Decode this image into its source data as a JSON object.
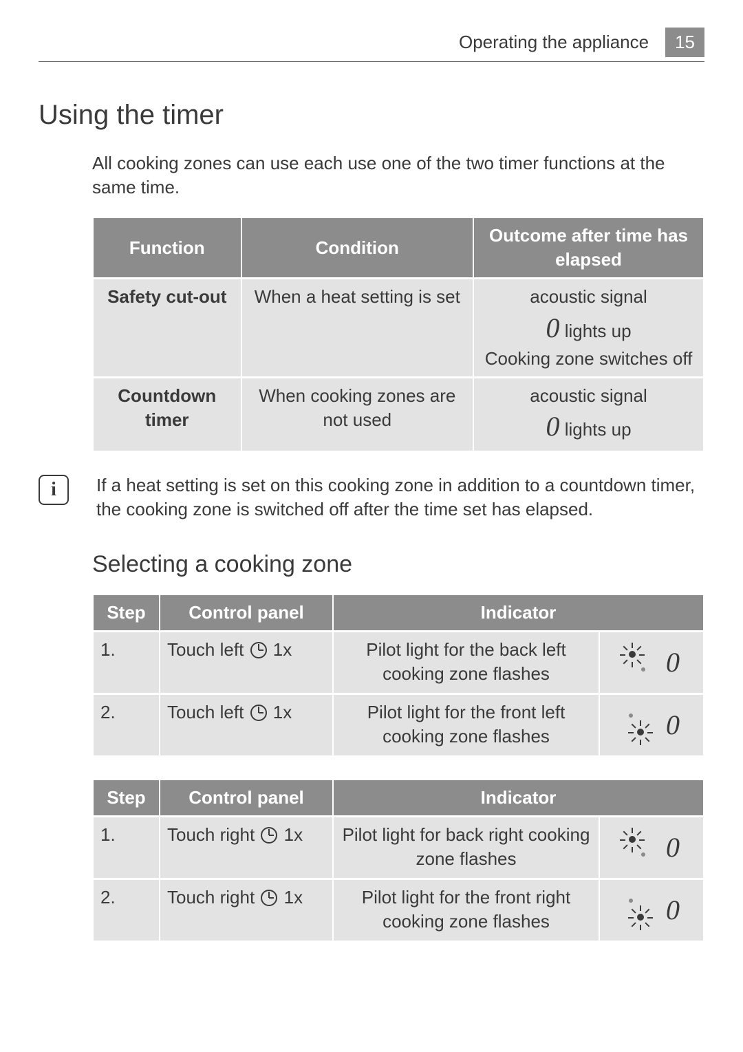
{
  "header": {
    "title": "Operating the appliance",
    "page_number": "15"
  },
  "section_title": "Using the timer",
  "intro": "All cooking zones can use each use one of the two timer functions at the same time.",
  "functions_table": {
    "columns": [
      "Function",
      "Condition",
      "Outcome after time has elapsed"
    ],
    "rows": [
      {
        "function": "Safety cut-out",
        "condition": "When a heat setting is set",
        "outcome_lines": [
          "acoustic signal",
          " lights up",
          "Cooking zone switches off"
        ],
        "outcome_glyph_before_line2": "0"
      },
      {
        "function": "Countdown timer",
        "condition": "When cooking zones are not used",
        "outcome_lines": [
          "acoustic signal",
          " lights up"
        ],
        "outcome_glyph_before_line2": "0"
      }
    ]
  },
  "info_note": "If a heat setting is set on this cooking zone in addition to a countdown timer, the cooking zone is switched off after the time set has elapsed.",
  "subsection_title": "Selecting a cooking zone",
  "zone_tables": [
    {
      "columns": [
        "Step",
        "Control panel",
        "Indicator"
      ],
      "col_widths": [
        "95px",
        "250px",
        "auto",
        "150px"
      ],
      "rows": [
        {
          "step": "1.",
          "control_prefix": "Touch left ",
          "control_suffix": "  1x",
          "indicator_text": "Pilot light for the back left cooking zone flashes",
          "pilot_variant": "back",
          "digit": "0"
        },
        {
          "step": "2.",
          "control_prefix": "Touch left ",
          "control_suffix": "  1x",
          "indicator_text": "Pilot light for the front left cooking zone flashes",
          "pilot_variant": "front",
          "digit": "0"
        }
      ]
    },
    {
      "columns": [
        "Step",
        "Control panel",
        "Indicator"
      ],
      "col_widths": [
        "95px",
        "250px",
        "auto",
        "150px"
      ],
      "rows": [
        {
          "step": "1.",
          "control_prefix": "Touch right ",
          "control_suffix": "  1x",
          "indicator_text": "Pilot light for back right cooking zone flashes",
          "pilot_variant": "back",
          "digit": "0"
        },
        {
          "step": "2.",
          "control_prefix": "Touch right ",
          "control_suffix": "  1x",
          "indicator_text": "Pilot light for the front right cooking zone flashes",
          "pilot_variant": "front",
          "digit": "0"
        }
      ]
    }
  ],
  "colors": {
    "header_grey": "#8c8c8c",
    "cell_grey": "#e3e3e3",
    "text": "#3a3a3a"
  }
}
